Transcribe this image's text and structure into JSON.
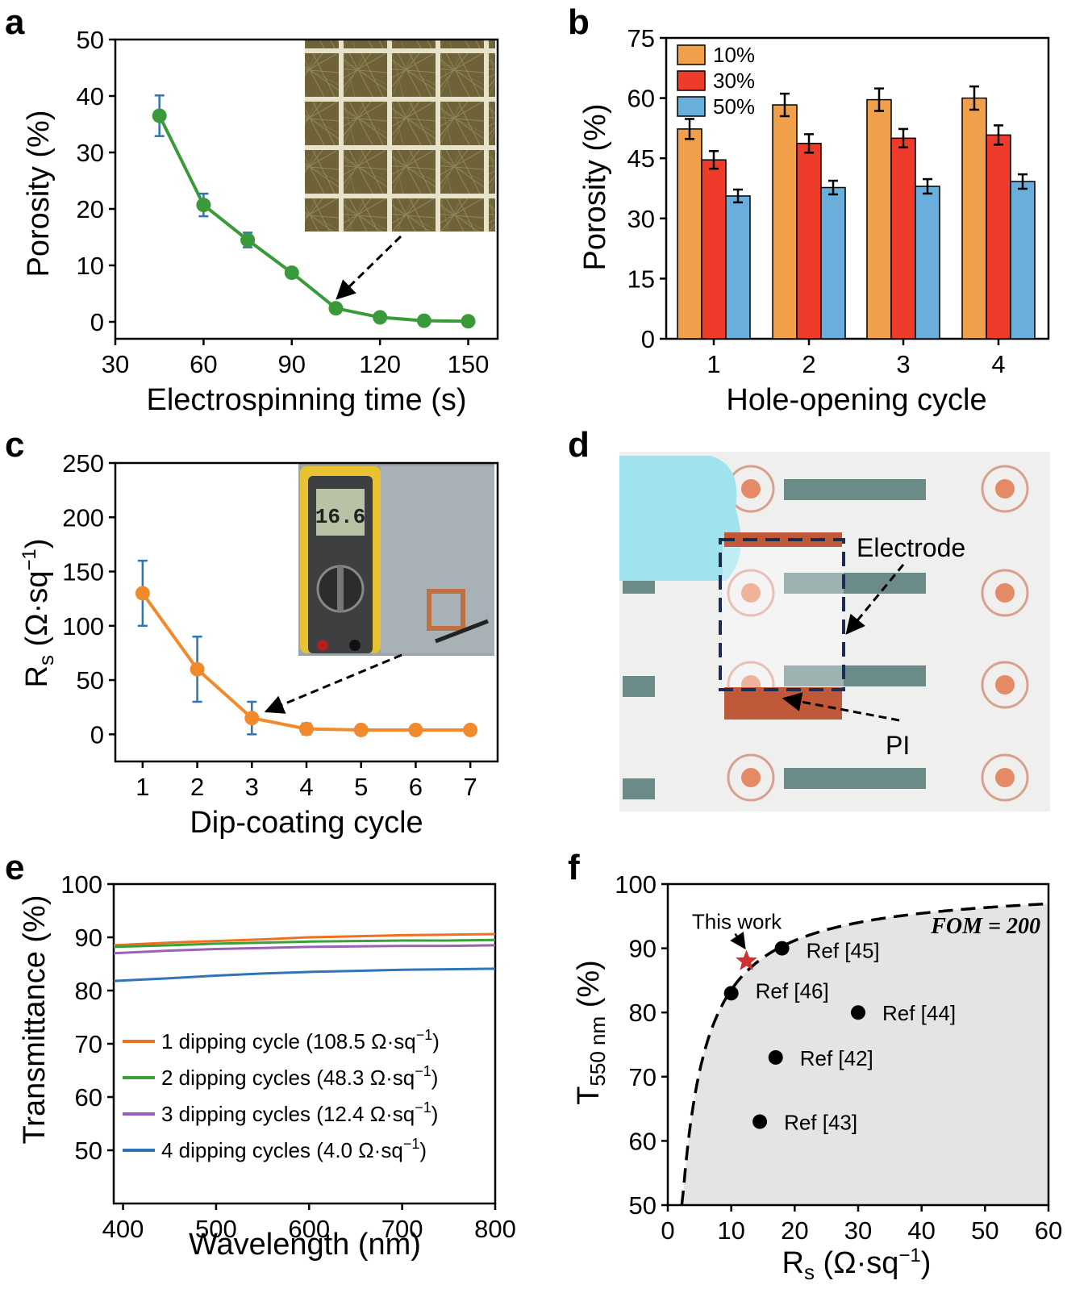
{
  "panels": {
    "a": "a",
    "b": "b",
    "c": "c",
    "d": "d",
    "e": "e",
    "f": "f"
  },
  "colors": {
    "green": "#3a9a3a",
    "orange_line": "#f08a2a",
    "errbar_blue": "#2f74b6",
    "bar10": "#f0a04a",
    "bar30": "#ee3b2a",
    "bar50": "#6aaedc",
    "e1": "#f07020",
    "e2": "#3aa03a",
    "e3": "#9a60b8",
    "e4": "#2f74b6",
    "star": "#d03030"
  },
  "chart_data": [
    {
      "id": "a",
      "type": "line",
      "title": "",
      "xlabel": "Electrospinning time (s)",
      "ylabel": "Porosity (%)",
      "xlim": [
        30,
        160
      ],
      "ylim": [
        -3,
        50
      ],
      "xticks": [
        30,
        60,
        90,
        120,
        150
      ],
      "xtick_labels": [
        "30",
        "60",
        "90",
        "120",
        "150"
      ],
      "yticks": [
        0,
        10,
        20,
        30,
        40,
        50
      ],
      "ytick_labels": [
        "0",
        "10",
        "20",
        "30",
        "40",
        "50"
      ],
      "x": [
        45,
        60,
        75,
        90,
        105,
        120,
        135,
        150
      ],
      "y": [
        36.5,
        20.7,
        14.5,
        8.7,
        2.4,
        0.8,
        0.2,
        0.1
      ],
      "err": [
        3.6,
        2.0,
        1.3,
        0.8,
        0.5,
        0.4,
        0.2,
        0.1
      ]
    },
    {
      "id": "b",
      "type": "bar",
      "title": "",
      "xlabel": "Hole-opening cycle",
      "ylabel": "Porosity (%)",
      "ylim": [
        0,
        75
      ],
      "yticks": [
        0,
        15,
        30,
        45,
        60,
        75
      ],
      "ytick_labels": [
        "0",
        "15",
        "30",
        "45",
        "60",
        "75"
      ],
      "categories": [
        "1",
        "2",
        "3",
        "4"
      ],
      "legend_position": "top-left",
      "series": [
        {
          "name": "10%",
          "values": [
            52.3,
            58.3,
            59.6,
            60.0
          ],
          "err": [
            2.5,
            2.8,
            2.8,
            2.9
          ]
        },
        {
          "name": "30%",
          "values": [
            44.6,
            48.7,
            50.0,
            50.8
          ],
          "err": [
            2.2,
            2.3,
            2.3,
            2.4
          ]
        },
        {
          "name": "50%",
          "values": [
            35.6,
            37.7,
            38.0,
            39.2
          ],
          "err": [
            1.6,
            1.7,
            1.8,
            1.8
          ]
        }
      ]
    },
    {
      "id": "c",
      "type": "line",
      "title": "",
      "xlabel": "Dip-coating cycle",
      "ylabel_main": "R",
      "ylabel_sub": "s",
      "ylabel_rest": " (Ω·sq",
      "ylabel_sup": "−1",
      "ylabel_end": ")",
      "xlim": [
        0.5,
        7.5
      ],
      "ylim": [
        -25,
        250
      ],
      "xticks": [
        1,
        2,
        3,
        4,
        5,
        6,
        7
      ],
      "xtick_labels": [
        "1",
        "2",
        "3",
        "4",
        "5",
        "6",
        "7"
      ],
      "yticks": [
        0,
        50,
        100,
        150,
        200,
        250
      ],
      "ytick_labels": [
        "0",
        "50",
        "100",
        "150",
        "200",
        "250"
      ],
      "x": [
        1,
        2,
        3,
        4,
        5,
        6,
        7
      ],
      "y": [
        130,
        60,
        15,
        5,
        4,
        4,
        4
      ],
      "err": [
        30,
        30,
        15,
        5,
        2,
        2,
        2
      ],
      "inset_meter_reading": "16.6"
    },
    {
      "id": "d",
      "type": "photo",
      "labels": {
        "electrode": "Electrode",
        "pi": "PI"
      }
    },
    {
      "id": "e",
      "type": "line",
      "title": "",
      "xlabel": "Wavelength (nm)",
      "ylabel": "Transmittance (%)",
      "xlim": [
        390,
        800
      ],
      "ylim": [
        40,
        100
      ],
      "xticks": [
        400,
        500,
        600,
        700,
        800
      ],
      "xtick_labels": [
        "400",
        "500",
        "600",
        "700",
        "800"
      ],
      "yticks": [
        50,
        60,
        70,
        80,
        90,
        100
      ],
      "ytick_labels": [
        "50",
        "60",
        "70",
        "80",
        "90",
        "100"
      ],
      "legend_position": "bottom-left",
      "series": [
        {
          "name": "1 dipping cycle (108.5 Ω·sq",
          "sup": "−1",
          "end": ")",
          "x": [
            390,
            450,
            500,
            550,
            600,
            650,
            700,
            750,
            800
          ],
          "y": [
            88.5,
            89.0,
            89.3,
            89.6,
            90.0,
            90.2,
            90.4,
            90.5,
            90.6
          ]
        },
        {
          "name": "2 dipping cycles (48.3 Ω·sq",
          "sup": "−1",
          "end": ")",
          "x": [
            390,
            450,
            500,
            550,
            600,
            650,
            700,
            750,
            800
          ],
          "y": [
            88.2,
            88.5,
            88.8,
            89.0,
            89.2,
            89.3,
            89.4,
            89.4,
            89.5
          ]
        },
        {
          "name": "3 dipping cycles (12.4 Ω·sq",
          "sup": "−1",
          "end": ")",
          "x": [
            390,
            450,
            500,
            550,
            600,
            650,
            700,
            750,
            800
          ],
          "y": [
            87.0,
            87.5,
            87.8,
            88.0,
            88.2,
            88.3,
            88.4,
            88.4,
            88.5
          ]
        },
        {
          "name": "4 dipping cycles (4.0 Ω·sq",
          "sup": "−1",
          "end": ")",
          "x": [
            390,
            450,
            500,
            550,
            600,
            650,
            700,
            750,
            800
          ],
          "y": [
            81.8,
            82.3,
            82.8,
            83.2,
            83.5,
            83.7,
            83.9,
            84.0,
            84.1
          ]
        }
      ]
    },
    {
      "id": "f",
      "type": "scatter",
      "title": "",
      "xlabel_main": "R",
      "xlabel_sub": "s",
      "xlabel_rest": " (Ω·sq",
      "xlabel_sup": "−1",
      "xlabel_end": ")",
      "ylabel_main": "T",
      "ylabel_sub": "550 nm",
      "ylabel_rest": " (%)",
      "xlim": [
        0,
        60
      ],
      "ylim": [
        50,
        100
      ],
      "xticks": [
        0,
        10,
        20,
        30,
        40,
        50,
        60
      ],
      "xtick_labels": [
        "0",
        "10",
        "20",
        "30",
        "40",
        "50",
        "60"
      ],
      "yticks": [
        50,
        60,
        70,
        80,
        90,
        100
      ],
      "ytick_labels": [
        "50",
        "60",
        "70",
        "80",
        "90",
        "100"
      ],
      "fom_text": "FOM = 200",
      "fom": 200,
      "this_work": {
        "label": "This work",
        "x": 12.4,
        "y": 88
      },
      "points": [
        {
          "label": "Ref [45]",
          "x": 18,
          "y": 90
        },
        {
          "label": "Ref [46]",
          "x": 10,
          "y": 83
        },
        {
          "label": "Ref [44]",
          "x": 30,
          "y": 80
        },
        {
          "label": "Ref [42]",
          "x": 17,
          "y": 73
        },
        {
          "label": "Ref [43]",
          "x": 14.5,
          "y": 63
        }
      ]
    }
  ]
}
